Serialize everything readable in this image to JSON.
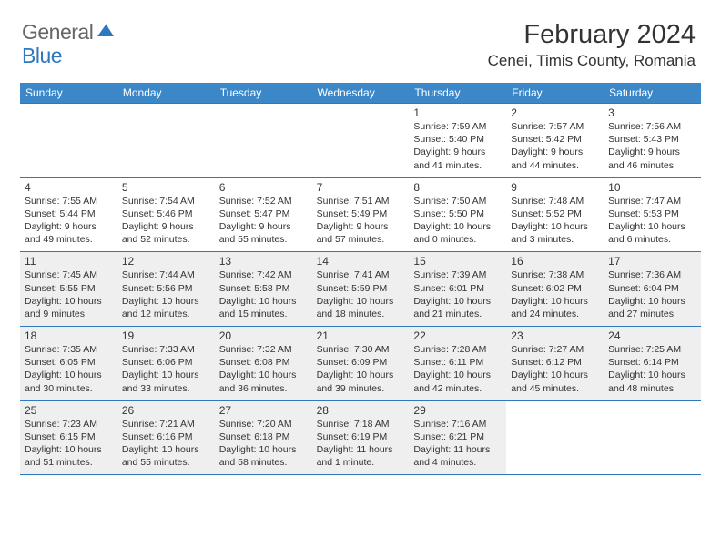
{
  "brand": {
    "word1": "General",
    "word2": "Blue",
    "word1_color": "#666666",
    "word2_color": "#2f78bd"
  },
  "header": {
    "month_title": "February 2024",
    "location": "Cenei, Timis County, Romania"
  },
  "colors": {
    "header_bar": "#3b87c8",
    "rule": "#2f78bd",
    "shaded_bg": "#efefef",
    "text": "#333333"
  },
  "weekdays": [
    "Sunday",
    "Monday",
    "Tuesday",
    "Wednesday",
    "Thursday",
    "Friday",
    "Saturday"
  ],
  "weeks": [
    [
      {
        "blank": true
      },
      {
        "blank": true
      },
      {
        "blank": true
      },
      {
        "blank": true
      },
      {
        "num": "1",
        "sunrise": "Sunrise: 7:59 AM",
        "sunset": "Sunset: 5:40 PM",
        "daylight": "Daylight: 9 hours and 41 minutes."
      },
      {
        "num": "2",
        "sunrise": "Sunrise: 7:57 AM",
        "sunset": "Sunset: 5:42 PM",
        "daylight": "Daylight: 9 hours and 44 minutes."
      },
      {
        "num": "3",
        "sunrise": "Sunrise: 7:56 AM",
        "sunset": "Sunset: 5:43 PM",
        "daylight": "Daylight: 9 hours and 46 minutes."
      }
    ],
    [
      {
        "num": "4",
        "sunrise": "Sunrise: 7:55 AM",
        "sunset": "Sunset: 5:44 PM",
        "daylight": "Daylight: 9 hours and 49 minutes."
      },
      {
        "num": "5",
        "sunrise": "Sunrise: 7:54 AM",
        "sunset": "Sunset: 5:46 PM",
        "daylight": "Daylight: 9 hours and 52 minutes."
      },
      {
        "num": "6",
        "sunrise": "Sunrise: 7:52 AM",
        "sunset": "Sunset: 5:47 PM",
        "daylight": "Daylight: 9 hours and 55 minutes."
      },
      {
        "num": "7",
        "sunrise": "Sunrise: 7:51 AM",
        "sunset": "Sunset: 5:49 PM",
        "daylight": "Daylight: 9 hours and 57 minutes."
      },
      {
        "num": "8",
        "sunrise": "Sunrise: 7:50 AM",
        "sunset": "Sunset: 5:50 PM",
        "daylight": "Daylight: 10 hours and 0 minutes."
      },
      {
        "num": "9",
        "sunrise": "Sunrise: 7:48 AM",
        "sunset": "Sunset: 5:52 PM",
        "daylight": "Daylight: 10 hours and 3 minutes."
      },
      {
        "num": "10",
        "sunrise": "Sunrise: 7:47 AM",
        "sunset": "Sunset: 5:53 PM",
        "daylight": "Daylight: 10 hours and 6 minutes."
      }
    ],
    [
      {
        "num": "11",
        "sunrise": "Sunrise: 7:45 AM",
        "sunset": "Sunset: 5:55 PM",
        "daylight": "Daylight: 10 hours and 9 minutes.",
        "shaded": true
      },
      {
        "num": "12",
        "sunrise": "Sunrise: 7:44 AM",
        "sunset": "Sunset: 5:56 PM",
        "daylight": "Daylight: 10 hours and 12 minutes.",
        "shaded": true
      },
      {
        "num": "13",
        "sunrise": "Sunrise: 7:42 AM",
        "sunset": "Sunset: 5:58 PM",
        "daylight": "Daylight: 10 hours and 15 minutes.",
        "shaded": true
      },
      {
        "num": "14",
        "sunrise": "Sunrise: 7:41 AM",
        "sunset": "Sunset: 5:59 PM",
        "daylight": "Daylight: 10 hours and 18 minutes.",
        "shaded": true
      },
      {
        "num": "15",
        "sunrise": "Sunrise: 7:39 AM",
        "sunset": "Sunset: 6:01 PM",
        "daylight": "Daylight: 10 hours and 21 minutes.",
        "shaded": true
      },
      {
        "num": "16",
        "sunrise": "Sunrise: 7:38 AM",
        "sunset": "Sunset: 6:02 PM",
        "daylight": "Daylight: 10 hours and 24 minutes.",
        "shaded": true
      },
      {
        "num": "17",
        "sunrise": "Sunrise: 7:36 AM",
        "sunset": "Sunset: 6:04 PM",
        "daylight": "Daylight: 10 hours and 27 minutes.",
        "shaded": true
      }
    ],
    [
      {
        "num": "18",
        "sunrise": "Sunrise: 7:35 AM",
        "sunset": "Sunset: 6:05 PM",
        "daylight": "Daylight: 10 hours and 30 minutes.",
        "shaded": true
      },
      {
        "num": "19",
        "sunrise": "Sunrise: 7:33 AM",
        "sunset": "Sunset: 6:06 PM",
        "daylight": "Daylight: 10 hours and 33 minutes.",
        "shaded": true
      },
      {
        "num": "20",
        "sunrise": "Sunrise: 7:32 AM",
        "sunset": "Sunset: 6:08 PM",
        "daylight": "Daylight: 10 hours and 36 minutes.",
        "shaded": true
      },
      {
        "num": "21",
        "sunrise": "Sunrise: 7:30 AM",
        "sunset": "Sunset: 6:09 PM",
        "daylight": "Daylight: 10 hours and 39 minutes.",
        "shaded": true
      },
      {
        "num": "22",
        "sunrise": "Sunrise: 7:28 AM",
        "sunset": "Sunset: 6:11 PM",
        "daylight": "Daylight: 10 hours and 42 minutes.",
        "shaded": true
      },
      {
        "num": "23",
        "sunrise": "Sunrise: 7:27 AM",
        "sunset": "Sunset: 6:12 PM",
        "daylight": "Daylight: 10 hours and 45 minutes.",
        "shaded": true
      },
      {
        "num": "24",
        "sunrise": "Sunrise: 7:25 AM",
        "sunset": "Sunset: 6:14 PM",
        "daylight": "Daylight: 10 hours and 48 minutes.",
        "shaded": true
      }
    ],
    [
      {
        "num": "25",
        "sunrise": "Sunrise: 7:23 AM",
        "sunset": "Sunset: 6:15 PM",
        "daylight": "Daylight: 10 hours and 51 minutes.",
        "shaded": true
      },
      {
        "num": "26",
        "sunrise": "Sunrise: 7:21 AM",
        "sunset": "Sunset: 6:16 PM",
        "daylight": "Daylight: 10 hours and 55 minutes.",
        "shaded": true
      },
      {
        "num": "27",
        "sunrise": "Sunrise: 7:20 AM",
        "sunset": "Sunset: 6:18 PM",
        "daylight": "Daylight: 10 hours and 58 minutes.",
        "shaded": true
      },
      {
        "num": "28",
        "sunrise": "Sunrise: 7:18 AM",
        "sunset": "Sunset: 6:19 PM",
        "daylight": "Daylight: 11 hours and 1 minute.",
        "shaded": true
      },
      {
        "num": "29",
        "sunrise": "Sunrise: 7:16 AM",
        "sunset": "Sunset: 6:21 PM",
        "daylight": "Daylight: 11 hours and 4 minutes.",
        "shaded": true
      },
      {
        "blank": true
      },
      {
        "blank": true
      }
    ]
  ]
}
